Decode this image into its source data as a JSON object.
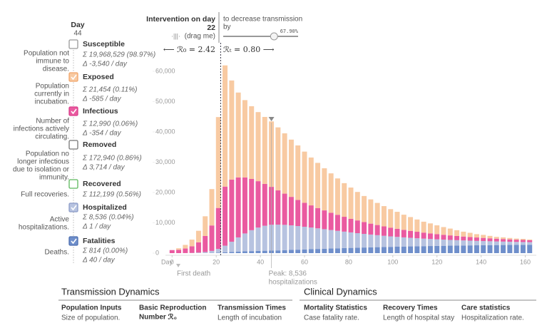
{
  "chart_data": {
    "type": "bar",
    "stacked": true,
    "x_label": "Day",
    "x": [
      0,
      3,
      6,
      9,
      12,
      15,
      18,
      21,
      24,
      27,
      30,
      33,
      36,
      39,
      42,
      45,
      48,
      51,
      54,
      57,
      60,
      63,
      66,
      69,
      72,
      75,
      78,
      81,
      84,
      87,
      90,
      93,
      96,
      99,
      102,
      105,
      108,
      111,
      114,
      117,
      120,
      123,
      126,
      129,
      132,
      135,
      138,
      141,
      144,
      147,
      150,
      153,
      156,
      159,
      162
    ],
    "xlim": [
      -3,
      165
    ],
    "xticks": [
      0,
      20,
      40,
      60,
      80,
      100,
      120,
      140,
      160
    ],
    "ylim": [
      0,
      65000
    ],
    "yticks": [
      0,
      {
        "value": 10000,
        "label": "10,000"
      },
      {
        "value": 20000,
        "label": "20,000"
      },
      {
        "value": 30000,
        "label": "30,000"
      },
      {
        "value": 40000,
        "label": "40,000"
      },
      {
        "value": 50000,
        "label": "50,000"
      },
      {
        "value": 60000,
        "label": "60,000"
      }
    ],
    "series": [
      {
        "name": "Fatalities",
        "color": "#6f8fcb",
        "values": [
          0,
          0,
          0,
          0,
          20,
          40,
          80,
          150,
          250,
          370,
          490,
          590,
          670,
          740,
          790,
          830,
          900,
          980,
          1060,
          1140,
          1220,
          1300,
          1380,
          1450,
          1520,
          1590,
          1660,
          1730,
          1790,
          1850,
          1910,
          1970,
          2020,
          2070,
          2120,
          2170,
          2220,
          2260,
          2300,
          2340,
          2380,
          2420,
          2460,
          2490,
          2520,
          2550,
          2580,
          2610,
          2640,
          2660,
          2680,
          2700,
          2720,
          2740,
          2760
        ]
      },
      {
        "name": "Hospitalized",
        "color": "#b7c3e0",
        "values": [
          0,
          0,
          20,
          60,
          150,
          320,
          650,
          1250,
          2200,
          3400,
          4700,
          5900,
          6900,
          7700,
          8250,
          8536,
          8500,
          8350,
          8100,
          7800,
          7480,
          7150,
          6800,
          6450,
          6100,
          5760,
          5430,
          5110,
          4800,
          4500,
          4220,
          3950,
          3700,
          3460,
          3240,
          3030,
          2830,
          2650,
          2480,
          2320,
          2170,
          2030,
          1900,
          1780,
          1670,
          1560,
          1460,
          1370,
          1280,
          1200,
          1130,
          1060,
          990,
          930,
          870
        ]
      },
      {
        "name": "Infectious",
        "color": "#ea5aa0",
        "values": [
          1000,
          1100,
          1500,
          2200,
          3400,
          5300,
          8400,
          13500,
          19500,
          20500,
          19800,
          18500,
          16900,
          15300,
          13800,
          12500,
          11300,
          10300,
          9400,
          8600,
          7900,
          7300,
          6700,
          6200,
          5700,
          5300,
          4900,
          4500,
          4200,
          3900,
          3600,
          3350,
          3100,
          2880,
          2670,
          2480,
          2300,
          2140,
          1990,
          1850,
          1720,
          1600,
          1490,
          1390,
          1290,
          1200,
          1120,
          1040,
          970,
          900,
          840,
          780,
          730,
          680,
          630
        ]
      },
      {
        "name": "Exposed",
        "color": "#f8caa2",
        "values": [
          0,
          500,
          1200,
          2200,
          3800,
          6500,
          12000,
          30000,
          40000,
          32700,
          28000,
          25500,
          24000,
          22800,
          22100,
          21600,
          20800,
          19900,
          18900,
          18000,
          16900,
          15800,
          14900,
          13900,
          13000,
          12000,
          11100,
          10300,
          9400,
          8600,
          8000,
          7300,
          6700,
          6100,
          5600,
          5000,
          4550,
          4050,
          3600,
          3300,
          2900,
          2550,
          2250,
          1900,
          1600,
          1400,
          1100,
          1000,
          800,
          600,
          550,
          460,
          360,
          350,
          240
        ]
      }
    ],
    "intervention_label": "Intervention on day",
    "intervention_day": 22,
    "decrease_label": [
      "to decrease transmission",
      "by"
    ],
    "transmission_decrease": 67.9,
    "transmission_decrease_label": "67.90%",
    "drag_hint": "(drag me)",
    "r0_text": "⟵ ℛ₀ = 2.42",
    "rt_text": "ℛₜ = 0.80 ⟶",
    "annotations": {
      "first_death": "First death",
      "peak": [
        "Peak: 8,536",
        "hospitalizations"
      ]
    }
  },
  "sidebar": {
    "day_label": "Day",
    "day": 44,
    "items": [
      {
        "label": "Susceptible",
        "description": [
          "Population not",
          "immune to",
          "disease."
        ],
        "total": "Σ 19,968,529 (98.97%)",
        "rate": "Δ -3,540 / day"
      },
      {
        "description": [
          "Population",
          "currently in",
          "incubation."
        ],
        "total": "Σ 21,454 (0.11%)",
        "rate": "Δ -585 / day"
      },
      {
        "description": [
          "Number of",
          "infections actively",
          "circulating."
        ],
        "total": "Σ 12,990 (0.06%)",
        "rate": "Δ -354 / day"
      },
      {
        "label": "Removed",
        "description": [
          "Population no",
          "longer infectious",
          "due to isolation or",
          "immunity."
        ],
        "total": "Σ 172,940 (0.86%)",
        "rate": "Δ 3,714 / day"
      },
      {
        "label": "Recovered",
        "description": [
          "Full recoveries."
        ],
        "total": "Σ 112,199 (0.56%)"
      },
      {
        "description": [
          "Active",
          "hospitalizations."
        ],
        "total": "Σ 8,536 (0.04%)",
        "rate": "Δ 1 / day"
      },
      {
        "description": [
          "Deaths."
        ],
        "total": "Σ 814 (0.00%)",
        "rate": "Δ 40 / day"
      }
    ]
  },
  "bottom": {
    "sections": [
      {
        "title": "Transmission Dynamics",
        "columns": [
          {
            "heading": [
              "Population Inputs"
            ],
            "text": "Size of population."
          },
          {
            "heading": [
              "Basic Reproduction",
              "Number ℛ₀"
            ]
          },
          {
            "heading": [
              "Transmission Times"
            ],
            "text": "Length of incubation"
          }
        ]
      },
      {
        "title": "Clinical Dynamics",
        "columns": [
          {
            "heading": [
              "Mortality Statistics"
            ],
            "text": "Case fatality rate."
          },
          {
            "heading": [
              "Recovery Times"
            ],
            "text": "Length of hospital stay"
          },
          {
            "heading": [
              "Care statistics"
            ],
            "text": "Hospitalization rate."
          }
        ]
      }
    ]
  }
}
